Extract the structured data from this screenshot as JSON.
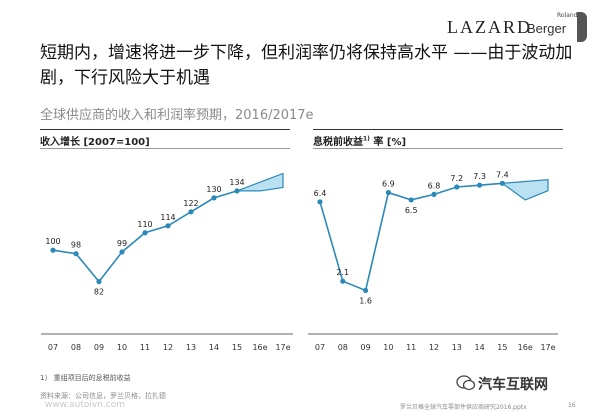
{
  "brand": {
    "lazard": "LAZARD",
    "roland": "Roland",
    "berger": "Berger"
  },
  "headline": "短期内，增速将进一步下降，但利润率仍将保持高水平 ——由于波动加剧，下行风险大于机遇",
  "subtitle": "全球供应商的收入和利润率预期，2016/2017e",
  "footnote": "1） 重组项目后的息税前收益",
  "source": "资料来源：公司信息，罗兰贝格，拉扎德",
  "filename": "罗兰贝格全球汽车零部件供应商研究2016.pptx",
  "page": "16",
  "watermark": {
    "brand": "汽车互联网",
    "url": "www.autoivn.com"
  },
  "colors": {
    "line": "#2b89b8",
    "band": "#b9e1f2",
    "text": "#222222"
  },
  "chart_data": [
    {
      "type": "line",
      "title": "收入增长 [2007=100]",
      "categories": [
        "07",
        "08",
        "09",
        "10",
        "11",
        "12",
        "13",
        "14",
        "15",
        "16e",
        "17e"
      ],
      "series": [
        {
          "values": [
            100,
            98,
            82,
            99,
            110,
            114,
            122,
            130,
            134,
            null,
            null
          ]
        }
      ],
      "forecast_band": {
        "x": [
          "15",
          "16e",
          "17e"
        ],
        "upper": [
          134,
          139,
          144
        ],
        "lower": [
          134,
          134,
          136
        ]
      },
      "ylim": [
        60,
        150
      ],
      "grid": false
    },
    {
      "type": "line",
      "title": "息税前收益",
      "title_sup": "1)",
      "title_suffix": "率 [%]",
      "categories": [
        "07",
        "08",
        "09",
        "10",
        "11",
        "12",
        "13",
        "14",
        "15",
        "16e",
        "17e"
      ],
      "series": [
        {
          "values": [
            6.4,
            2.1,
            1.6,
            6.9,
            6.5,
            6.8,
            7.2,
            7.3,
            7.4,
            null,
            null
          ]
        }
      ],
      "forecast_band": {
        "x": [
          "15",
          "16e",
          "17e"
        ],
        "upper": [
          7.4,
          7.5,
          7.6
        ],
        "lower": [
          7.4,
          6.5,
          7.0
        ]
      },
      "ylim": [
        0,
        8.5
      ],
      "grid": false
    }
  ]
}
